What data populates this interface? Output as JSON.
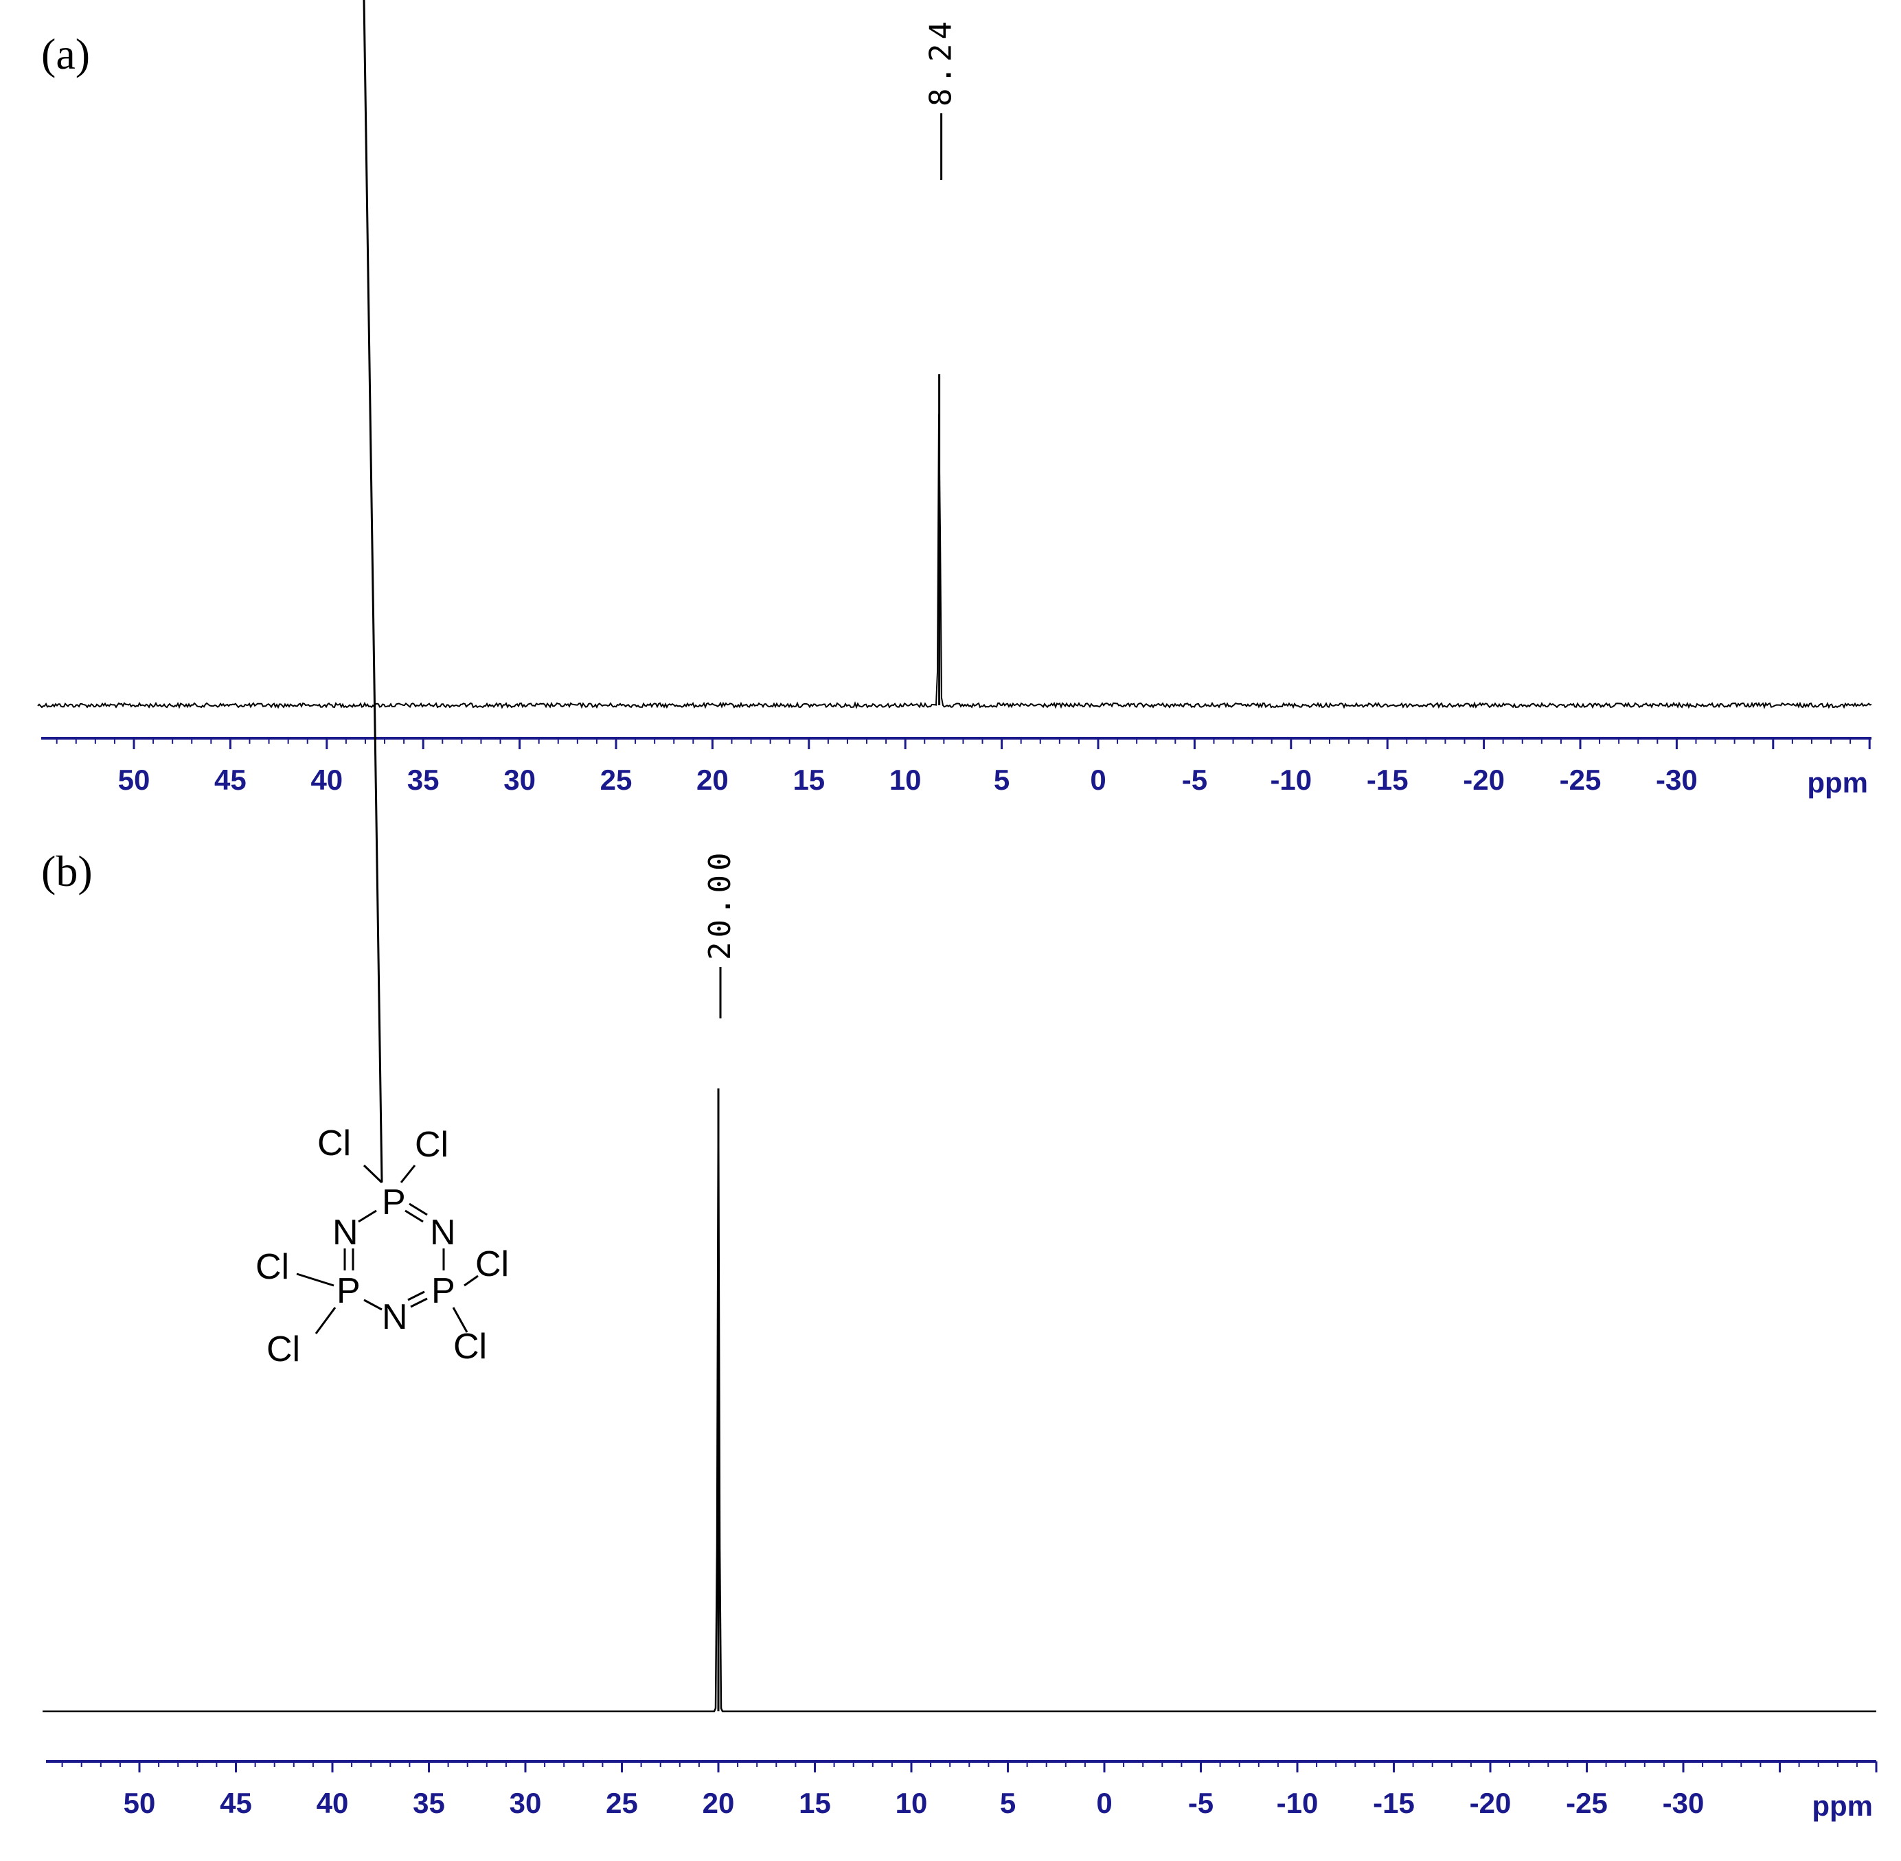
{
  "chart_data": [
    {
      "type": "line",
      "panel_label": "(a)",
      "peaks": [
        {
          "x": 8.24,
          "label": "8.24"
        }
      ],
      "xlim": [
        55,
        -40
      ],
      "x_ticks": [
        50,
        45,
        40,
        35,
        30,
        25,
        20,
        15,
        10,
        5,
        0,
        -5,
        -10,
        -15,
        -20,
        -25,
        -30
      ],
      "x_tick_labels": [
        "50",
        "45",
        "40",
        "35",
        "30",
        "25",
        "20",
        "15",
        "10",
        "5",
        "0",
        "-5",
        "-10",
        "-15",
        "-20",
        "-25",
        "-30"
      ],
      "xlabel": "ppm",
      "peak_relative_height": 0.8,
      "noise": true,
      "colors": {
        "axis": "#1a1a8c",
        "trace": "#000000"
      }
    },
    {
      "type": "line",
      "panel_label": "(b)",
      "peaks": [
        {
          "x": 20.0,
          "label": "20.00"
        }
      ],
      "xlim": [
        55,
        -40
      ],
      "x_ticks": [
        50,
        45,
        40,
        35,
        30,
        25,
        20,
        15,
        10,
        5,
        0,
        -5,
        -10,
        -15,
        -20,
        -25,
        -30
      ],
      "x_tick_labels": [
        "50",
        "45",
        "40",
        "35",
        "30",
        "25",
        "20",
        "15",
        "10",
        "5",
        "0",
        "-5",
        "-10",
        "-15",
        "-20",
        "-25",
        "-30"
      ],
      "xlabel": "ppm",
      "peak_relative_height": 0.9,
      "noise": false,
      "colors": {
        "axis": "#1a1a8c",
        "trace": "#000000"
      }
    }
  ],
  "molecule": {
    "atoms": {
      "cl": "Cl",
      "p": "P",
      "n": "N"
    }
  }
}
